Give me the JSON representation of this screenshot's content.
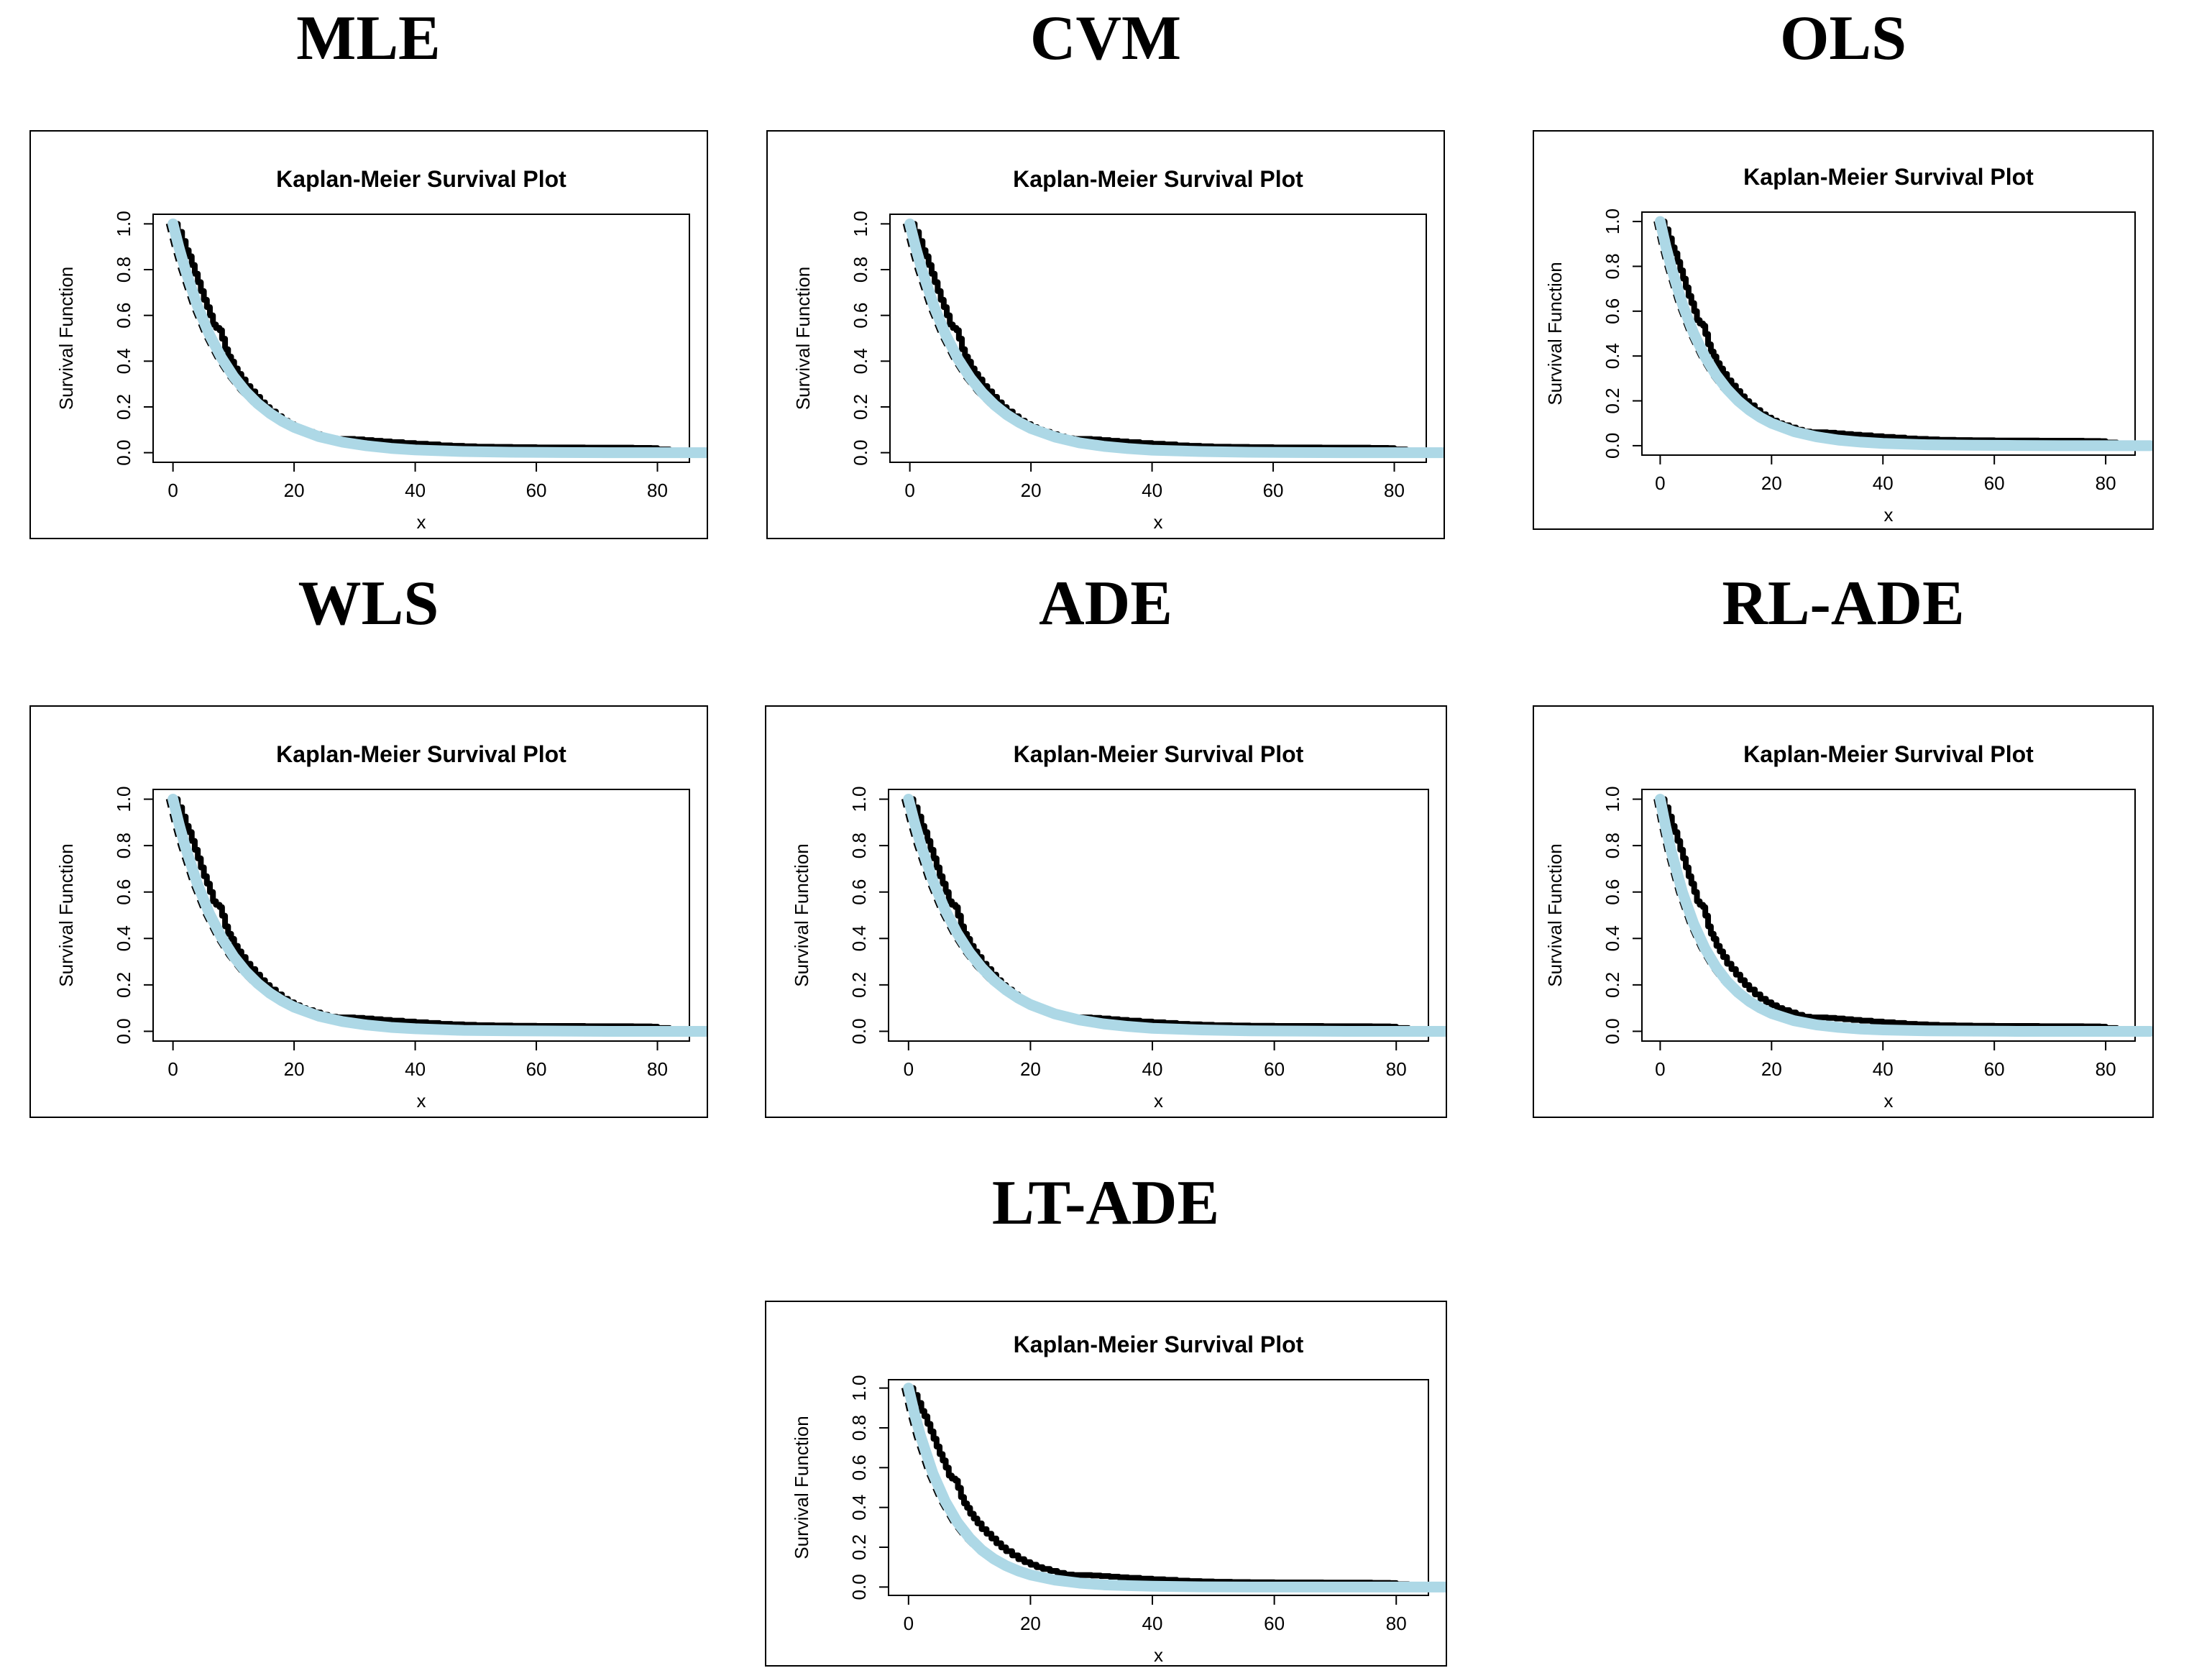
{
  "figure": {
    "description": "Grid of seven Kaplan-Meier survival plots comparing estimation methods",
    "background": "#ffffff",
    "text_color": "#000000"
  },
  "chart_data": {
    "type": "line",
    "title": "Kaplan-Meier Survival Plot",
    "xlabel": "x",
    "ylabel": "Survival Function",
    "xlim": [
      0,
      82
    ],
    "ylim": [
      0,
      1
    ],
    "grid": "off",
    "legend": "none",
    "xticks": [
      {
        "label": "0",
        "value": 0
      },
      {
        "label": "20",
        "value": 20
      },
      {
        "label": "40",
        "value": 40
      },
      {
        "label": "60",
        "value": 60
      },
      {
        "label": "80",
        "value": 80
      }
    ],
    "yticks": [
      {
        "label": "0.0",
        "value": 0.0
      },
      {
        "label": "0.2",
        "value": 0.2
      },
      {
        "label": "0.4",
        "value": 0.4
      },
      {
        "label": "0.6",
        "value": 0.6
      },
      {
        "label": "0.8",
        "value": 0.8
      },
      {
        "label": "1.0",
        "value": 1.0
      }
    ],
    "km_series": {
      "name": "Kaplan-Meier empirical survival (step curve)",
      "color": "#000000",
      "style": "solid step, thick"
    },
    "dash_series": {
      "name": "dashed reference curve",
      "color": "#000000",
      "style": "dashed thin"
    },
    "fit_series": {
      "name": "Fitted parametric survival function",
      "color": "#ADD8E6",
      "style": "solid smooth, very thick"
    },
    "km_points": [
      [
        0,
        1.0
      ],
      [
        0.8,
        0.965
      ],
      [
        1.5,
        0.925
      ],
      [
        2.1,
        0.885
      ],
      [
        2.6,
        0.858
      ],
      [
        3.1,
        0.82
      ],
      [
        3.6,
        0.782
      ],
      [
        4.1,
        0.745
      ],
      [
        4.6,
        0.706
      ],
      [
        5.1,
        0.668
      ],
      [
        5.6,
        0.636
      ],
      [
        6.1,
        0.6
      ],
      [
        6.6,
        0.56
      ],
      [
        7.1,
        0.545
      ],
      [
        7.7,
        0.535
      ],
      [
        8.1,
        0.498
      ],
      [
        8.6,
        0.452
      ],
      [
        9.1,
        0.42
      ],
      [
        9.6,
        0.398
      ],
      [
        10.1,
        0.368
      ],
      [
        10.7,
        0.344
      ],
      [
        11.3,
        0.32
      ],
      [
        12,
        0.291
      ],
      [
        12.8,
        0.268
      ],
      [
        13.6,
        0.244
      ],
      [
        14.4,
        0.22
      ],
      [
        15.2,
        0.199
      ],
      [
        16,
        0.18
      ],
      [
        17,
        0.159
      ],
      [
        18,
        0.14
      ],
      [
        19,
        0.125
      ],
      [
        20,
        0.112
      ],
      [
        21,
        0.1
      ],
      [
        22,
        0.091
      ],
      [
        23.2,
        0.081
      ],
      [
        24.4,
        0.071
      ],
      [
        25.6,
        0.063
      ],
      [
        27,
        0.06
      ],
      [
        28.5,
        0.06
      ],
      [
        30,
        0.058
      ],
      [
        31.5,
        0.055
      ],
      [
        33,
        0.052
      ],
      [
        34.5,
        0.049
      ],
      [
        36,
        0.046
      ],
      [
        38,
        0.042
      ],
      [
        40,
        0.039
      ],
      [
        42,
        0.036
      ],
      [
        44,
        0.032
      ],
      [
        46,
        0.03
      ],
      [
        48,
        0.028
      ],
      [
        50,
        0.026
      ],
      [
        53,
        0.025
      ],
      [
        56,
        0.024
      ],
      [
        60,
        0.023
      ],
      [
        64,
        0.023
      ],
      [
        68,
        0.022
      ],
      [
        72,
        0.022
      ],
      [
        76,
        0.021
      ],
      [
        79,
        0.02
      ],
      [
        80,
        0.014
      ],
      [
        82,
        0.013
      ]
    ],
    "panels": [
      {
        "label": "MLE",
        "fit_points": [
          [
            0,
            1.0
          ],
          [
            1,
            0.896
          ],
          [
            2,
            0.803
          ],
          [
            4,
            0.644
          ],
          [
            6,
            0.517
          ],
          [
            8,
            0.415
          ],
          [
            10,
            0.333
          ],
          [
            12,
            0.267
          ],
          [
            14,
            0.214
          ],
          [
            16,
            0.172
          ],
          [
            18,
            0.138
          ],
          [
            20,
            0.111
          ],
          [
            24,
            0.071
          ],
          [
            28,
            0.046
          ],
          [
            32,
            0.03
          ],
          [
            36,
            0.019
          ],
          [
            40,
            0.012
          ],
          [
            48,
            0.005
          ],
          [
            56,
            0.002
          ],
          [
            64,
            0.001
          ],
          [
            72,
            0.0
          ],
          [
            80,
            0.0
          ],
          [
            88,
            0.0
          ]
        ]
      },
      {
        "label": "CVM",
        "fit_points": [
          [
            0,
            1.0
          ],
          [
            1,
            0.894
          ],
          [
            2,
            0.799
          ],
          [
            4,
            0.639
          ],
          [
            6,
            0.511
          ],
          [
            8,
            0.408
          ],
          [
            10,
            0.326
          ],
          [
            12,
            0.261
          ],
          [
            14,
            0.208
          ],
          [
            16,
            0.166
          ],
          [
            18,
            0.133
          ],
          [
            20,
            0.106
          ],
          [
            24,
            0.068
          ],
          [
            28,
            0.043
          ],
          [
            32,
            0.028
          ],
          [
            36,
            0.018
          ],
          [
            40,
            0.011
          ],
          [
            48,
            0.005
          ],
          [
            56,
            0.002
          ],
          [
            64,
            0.001
          ],
          [
            72,
            0.0
          ],
          [
            80,
            0.0
          ],
          [
            88,
            0.0
          ]
        ]
      },
      {
        "label": "OLS",
        "fit_points": [
          [
            0,
            1.0
          ],
          [
            1,
            0.891
          ],
          [
            2,
            0.795
          ],
          [
            4,
            0.631
          ],
          [
            6,
            0.502
          ],
          [
            8,
            0.399
          ],
          [
            10,
            0.317
          ],
          [
            12,
            0.252
          ],
          [
            14,
            0.2
          ],
          [
            16,
            0.159
          ],
          [
            18,
            0.126
          ],
          [
            20,
            0.1
          ],
          [
            24,
            0.063
          ],
          [
            28,
            0.04
          ],
          [
            32,
            0.025
          ],
          [
            36,
            0.016
          ],
          [
            40,
            0.01
          ],
          [
            48,
            0.004
          ],
          [
            56,
            0.002
          ],
          [
            64,
            0.001
          ],
          [
            72,
            0.0
          ],
          [
            80,
            0.0
          ],
          [
            88,
            0.0
          ]
        ]
      },
      {
        "label": "WLS",
        "fit_points": [
          [
            0,
            1.0
          ],
          [
            1,
            0.893
          ],
          [
            2,
            0.798
          ],
          [
            4,
            0.637
          ],
          [
            6,
            0.508
          ],
          [
            8,
            0.405
          ],
          [
            10,
            0.323
          ],
          [
            12,
            0.258
          ],
          [
            14,
            0.206
          ],
          [
            16,
            0.164
          ],
          [
            18,
            0.131
          ],
          [
            20,
            0.104
          ],
          [
            24,
            0.066
          ],
          [
            28,
            0.042
          ],
          [
            32,
            0.027
          ],
          [
            36,
            0.017
          ],
          [
            40,
            0.011
          ],
          [
            48,
            0.004
          ],
          [
            56,
            0.002
          ],
          [
            64,
            0.001
          ],
          [
            72,
            0.0
          ],
          [
            80,
            0.0
          ],
          [
            88,
            0.0
          ]
        ]
      },
      {
        "label": "ADE",
        "fit_points": [
          [
            0,
            1.0
          ],
          [
            1,
            0.898
          ],
          [
            2,
            0.806
          ],
          [
            4,
            0.649
          ],
          [
            6,
            0.523
          ],
          [
            8,
            0.422
          ],
          [
            10,
            0.34
          ],
          [
            12,
            0.274
          ],
          [
            14,
            0.22
          ],
          [
            16,
            0.178
          ],
          [
            18,
            0.143
          ],
          [
            20,
            0.115
          ],
          [
            24,
            0.075
          ],
          [
            28,
            0.049
          ],
          [
            32,
            0.032
          ],
          [
            36,
            0.021
          ],
          [
            40,
            0.013
          ],
          [
            48,
            0.006
          ],
          [
            56,
            0.002
          ],
          [
            64,
            0.001
          ],
          [
            72,
            0.0
          ],
          [
            80,
            0.0
          ],
          [
            88,
            0.0
          ]
        ]
      },
      {
        "label": "RL-ADE",
        "fit_points": [
          [
            0,
            1.0
          ],
          [
            1,
            0.88
          ],
          [
            2,
            0.774
          ],
          [
            4,
            0.599
          ],
          [
            6,
            0.464
          ],
          [
            8,
            0.359
          ],
          [
            10,
            0.278
          ],
          [
            12,
            0.215
          ],
          [
            14,
            0.167
          ],
          [
            16,
            0.129
          ],
          [
            18,
            0.1
          ],
          [
            20,
            0.077
          ],
          [
            24,
            0.046
          ],
          [
            28,
            0.028
          ],
          [
            32,
            0.017
          ],
          [
            36,
            0.01
          ],
          [
            40,
            0.006
          ],
          [
            48,
            0.002
          ],
          [
            56,
            0.001
          ],
          [
            64,
            0.0
          ],
          [
            72,
            0.0
          ],
          [
            80,
            0.0
          ],
          [
            88,
            0.0
          ]
        ]
      },
      {
        "label": "LT-ADE",
        "fit_points": [
          [
            0,
            1.0
          ],
          [
            1,
            0.869
          ],
          [
            2,
            0.756
          ],
          [
            4,
            0.571
          ],
          [
            6,
            0.432
          ],
          [
            8,
            0.326
          ],
          [
            10,
            0.247
          ],
          [
            12,
            0.186
          ],
          [
            14,
            0.141
          ],
          [
            16,
            0.107
          ],
          [
            18,
            0.081
          ],
          [
            20,
            0.061
          ],
          [
            24,
            0.035
          ],
          [
            28,
            0.02
          ],
          [
            32,
            0.011
          ],
          [
            36,
            0.007
          ],
          [
            40,
            0.004
          ],
          [
            48,
            0.001
          ],
          [
            56,
            0.0
          ],
          [
            64,
            0.0
          ],
          [
            72,
            0.0
          ],
          [
            80,
            0.0
          ],
          [
            88,
            0.0
          ]
        ]
      }
    ]
  }
}
